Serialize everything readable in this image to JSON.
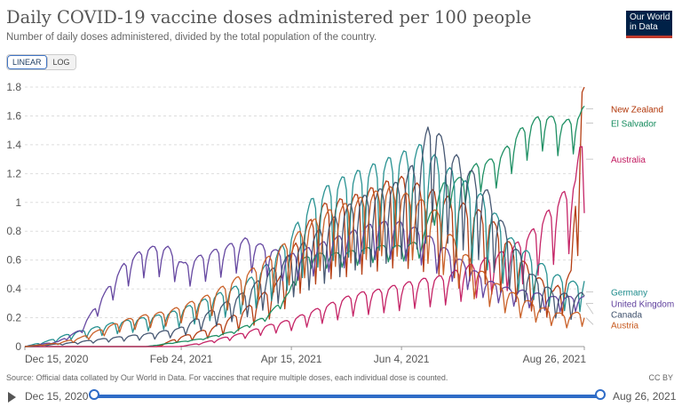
{
  "header": {
    "title": "Daily COVID-19 vaccine doses administered per 100 people",
    "subtitle": "Number of daily doses administered, divided by the total population of the country.",
    "logo_line1": "Our World",
    "logo_line2": "in Data"
  },
  "controls": {
    "linear_label": "LINEAR",
    "log_label": "LOG"
  },
  "footer": {
    "source": "Source: Official data collated by Our World in Data. For vaccines that require multiple doses, each individual dose is counted.",
    "license": "CC BY"
  },
  "timeline": {
    "start_label": "Dec 15, 2020",
    "end_label": "Aug 26, 2021",
    "start_fraction": 0,
    "end_fraction": 1
  },
  "colors": {
    "grid": "#dddddd",
    "axis": "#999999",
    "tick_text": "#555555",
    "slider": "#2f6cc7"
  },
  "chart_data": {
    "type": "line",
    "title": "Daily COVID-19 vaccine doses administered per 100 people",
    "xlabel": "",
    "ylabel": "",
    "x_ticks": [
      "Dec 15, 2020",
      "Feb 24, 2021",
      "Apr 15, 2021",
      "Jun 4, 2021",
      "Aug 26, 2021"
    ],
    "x_tick_days": [
      0,
      71,
      121,
      171,
      254
    ],
    "x_range_days": [
      0,
      254
    ],
    "ylim": [
      0,
      1.8
    ],
    "y_ticks": [
      0,
      0.2,
      0.4,
      0.6,
      0.8,
      1,
      1.2,
      1.4,
      1.6,
      1.8
    ],
    "y_tick_labels": [
      "0",
      "0.2",
      "0.4",
      "0.6",
      "0.8",
      "1",
      "1.2",
      "1.4",
      "1.6",
      "1.8"
    ],
    "grid": true,
    "legend": "right-labels",
    "series": [
      {
        "name": "New Zealand",
        "color": "#b13507",
        "weekday_amp": 0.4,
        "points": [
          [
            0,
            0
          ],
          [
            40,
            0
          ],
          [
            60,
            0
          ],
          [
            70,
            0.05
          ],
          [
            85,
            0.1
          ],
          [
            100,
            0.2
          ],
          [
            115,
            0.35
          ],
          [
            125,
            0.6
          ],
          [
            135,
            0.75
          ],
          [
            150,
            0.8
          ],
          [
            160,
            0.85
          ],
          [
            170,
            0.9
          ],
          [
            180,
            0.85
          ],
          [
            190,
            0.8
          ],
          [
            200,
            0.75
          ],
          [
            210,
            0.7
          ],
          [
            220,
            0.55
          ],
          [
            230,
            0.4
          ],
          [
            240,
            0.3
          ],
          [
            248,
            0.4
          ],
          [
            254,
            1.65
          ]
        ]
      },
      {
        "name": "El Salvador",
        "color": "#138a5c",
        "weekday_amp": 0.1,
        "points": [
          [
            0,
            0
          ],
          [
            55,
            0
          ],
          [
            65,
            0.02
          ],
          [
            80,
            0.05
          ],
          [
            95,
            0.1
          ],
          [
            110,
            0.2
          ],
          [
            120,
            0.35
          ],
          [
            125,
            0.55
          ],
          [
            130,
            0.6
          ],
          [
            140,
            0.6
          ],
          [
            150,
            0.62
          ],
          [
            160,
            0.65
          ],
          [
            170,
            0.65
          ],
          [
            180,
            0.68
          ],
          [
            185,
            0.9
          ],
          [
            190,
            1.05
          ],
          [
            200,
            1.1
          ],
          [
            205,
            1.18
          ],
          [
            215,
            1.22
          ],
          [
            225,
            1.4
          ],
          [
            235,
            1.5
          ],
          [
            245,
            1.45
          ],
          [
            252,
            1.5
          ],
          [
            254,
            1.55
          ]
        ]
      },
      {
        "name": "Australia",
        "color": "#c2195f",
        "weekday_amp": 0.3,
        "points": [
          [
            0,
            0
          ],
          [
            60,
            0
          ],
          [
            70,
            0
          ],
          [
            80,
            0.02
          ],
          [
            90,
            0.05
          ],
          [
            100,
            0.08
          ],
          [
            110,
            0.12
          ],
          [
            120,
            0.15
          ],
          [
            130,
            0.2
          ],
          [
            140,
            0.25
          ],
          [
            150,
            0.3
          ],
          [
            160,
            0.32
          ],
          [
            170,
            0.35
          ],
          [
            180,
            0.38
          ],
          [
            190,
            0.4
          ],
          [
            200,
            0.45
          ],
          [
            210,
            0.5
          ],
          [
            220,
            0.55
          ],
          [
            230,
            0.65
          ],
          [
            240,
            0.8
          ],
          [
            250,
            0.95
          ],
          [
            254,
            1.3
          ]
        ]
      },
      {
        "name": "Germany",
        "color": "#1e8c8c",
        "weekday_amp": 0.35,
        "points": [
          [
            0,
            0
          ],
          [
            10,
            0.03
          ],
          [
            20,
            0.07
          ],
          [
            30,
            0.1
          ],
          [
            40,
            0.13
          ],
          [
            50,
            0.15
          ],
          [
            60,
            0.17
          ],
          [
            70,
            0.2
          ],
          [
            80,
            0.25
          ],
          [
            90,
            0.3
          ],
          [
            100,
            0.35
          ],
          [
            110,
            0.45
          ],
          [
            120,
            0.6
          ],
          [
            130,
            0.8
          ],
          [
            140,
            0.9
          ],
          [
            150,
            0.95
          ],
          [
            160,
            1.0
          ],
          [
            170,
            1.05
          ],
          [
            180,
            1.1
          ],
          [
            190,
            1.0
          ],
          [
            200,
            0.9
          ],
          [
            210,
            0.8
          ],
          [
            220,
            0.6
          ],
          [
            230,
            0.5
          ],
          [
            240,
            0.4
          ],
          [
            250,
            0.35
          ],
          [
            254,
            0.38
          ]
        ]
      },
      {
        "name": "United Kingdom",
        "color": "#5e3e9c",
        "weekday_amp": 0.2,
        "points": [
          [
            0,
            0
          ],
          [
            15,
            0.03
          ],
          [
            25,
            0.1
          ],
          [
            35,
            0.3
          ],
          [
            45,
            0.5
          ],
          [
            55,
            0.6
          ],
          [
            65,
            0.6
          ],
          [
            72,
            0.5
          ],
          [
            80,
            0.55
          ],
          [
            90,
            0.6
          ],
          [
            100,
            0.65
          ],
          [
            110,
            0.6
          ],
          [
            120,
            0.55
          ],
          [
            130,
            0.6
          ],
          [
            140,
            0.65
          ],
          [
            150,
            0.7
          ],
          [
            160,
            0.75
          ],
          [
            170,
            0.75
          ],
          [
            180,
            0.7
          ],
          [
            190,
            0.6
          ],
          [
            200,
            0.5
          ],
          [
            210,
            0.4
          ],
          [
            220,
            0.35
          ],
          [
            230,
            0.33
          ],
          [
            240,
            0.3
          ],
          [
            250,
            0.3
          ],
          [
            254,
            0.3
          ]
        ]
      },
      {
        "name": "Canada",
        "color": "#3d4f6b",
        "weekday_amp": 0.35,
        "points": [
          [
            0,
            0
          ],
          [
            20,
            0.02
          ],
          [
            40,
            0.05
          ],
          [
            55,
            0.07
          ],
          [
            70,
            0.1
          ],
          [
            85,
            0.2
          ],
          [
            100,
            0.3
          ],
          [
            110,
            0.4
          ],
          [
            120,
            0.5
          ],
          [
            130,
            0.6
          ],
          [
            140,
            0.7
          ],
          [
            150,
            0.8
          ],
          [
            160,
            0.85
          ],
          [
            170,
            0.9
          ],
          [
            180,
            1.05
          ],
          [
            185,
            1.3
          ],
          [
            190,
            1.1
          ],
          [
            200,
            1.0
          ],
          [
            210,
            0.85
          ],
          [
            220,
            0.6
          ],
          [
            230,
            0.4
          ],
          [
            240,
            0.3
          ],
          [
            250,
            0.28
          ],
          [
            254,
            0.3
          ]
        ]
      },
      {
        "name": "Austria",
        "color": "#c75a1f",
        "weekday_amp": 0.3,
        "points": [
          [
            0,
            0
          ],
          [
            15,
            0.02
          ],
          [
            25,
            0.05
          ],
          [
            35,
            0.1
          ],
          [
            45,
            0.15
          ],
          [
            55,
            0.18
          ],
          [
            65,
            0.2
          ],
          [
            75,
            0.25
          ],
          [
            85,
            0.3
          ],
          [
            95,
            0.38
          ],
          [
            105,
            0.45
          ],
          [
            115,
            0.55
          ],
          [
            125,
            0.65
          ],
          [
            135,
            0.75
          ],
          [
            145,
            0.8
          ],
          [
            155,
            0.85
          ],
          [
            165,
            0.9
          ],
          [
            175,
            0.85
          ],
          [
            185,
            0.8
          ],
          [
            195,
            0.6
          ],
          [
            205,
            0.45
          ],
          [
            215,
            0.35
          ],
          [
            225,
            0.28
          ],
          [
            235,
            0.22
          ],
          [
            245,
            0.18
          ],
          [
            254,
            0.2
          ]
        ]
      }
    ]
  }
}
